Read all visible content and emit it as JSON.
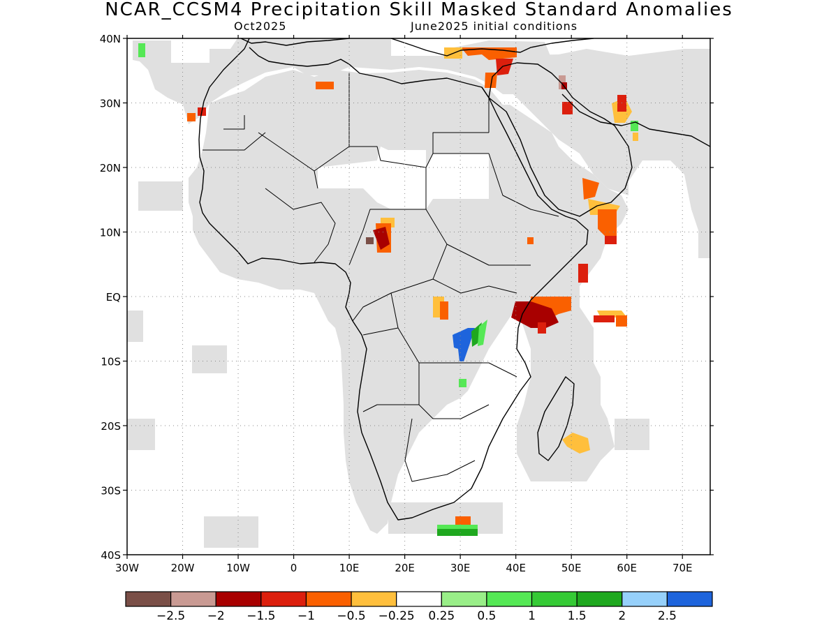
{
  "title": "NCAR_CCSM4 Precipitation Skill Masked Standard Anomalies",
  "subtitle_left": "Oct2025",
  "subtitle_right": "June2025 initial conditions",
  "map": {
    "lon_range": [
      -30,
      75
    ],
    "lat_range": [
      -40,
      40
    ],
    "lat_ticks": [
      {
        "value": 40,
        "label": "40N"
      },
      {
        "value": 30,
        "label": "30N"
      },
      {
        "value": 20,
        "label": "20N"
      },
      {
        "value": 10,
        "label": "10N"
      },
      {
        "value": 0,
        "label": "EQ"
      },
      {
        "value": -10,
        "label": "10S"
      },
      {
        "value": -20,
        "label": "20S"
      },
      {
        "value": -30,
        "label": "30S"
      },
      {
        "value": -40,
        "label": "40S"
      }
    ],
    "lon_ticks": [
      {
        "value": -30,
        "label": "30W"
      },
      {
        "value": -20,
        "label": "20W"
      },
      {
        "value": -10,
        "label": "10W"
      },
      {
        "value": 0,
        "label": "0"
      },
      {
        "value": 10,
        "label": "10E"
      },
      {
        "value": 20,
        "label": "20E"
      },
      {
        "value": 30,
        "label": "30E"
      },
      {
        "value": 40,
        "label": "40E"
      },
      {
        "value": 50,
        "label": "50E"
      },
      {
        "value": 60,
        "label": "60E"
      },
      {
        "value": 70,
        "label": "70E"
      }
    ],
    "mask_color": "#e0e0e0",
    "grid": true,
    "anomalies": [
      {
        "region": "Turkey / Levant",
        "lon": 37,
        "lat": 36,
        "value": -1.0
      },
      {
        "region": "Aegean",
        "lon": 27,
        "lat": 37,
        "value": -0.5
      },
      {
        "region": "Northern Algeria",
        "lon": 5,
        "lat": 33,
        "value": -1.0
      },
      {
        "region": "Morocco coast",
        "lon": -12,
        "lat": 29,
        "value": -1.0
      },
      {
        "region": "Canary Islands",
        "lon": -28,
        "lat": 39,
        "value": 1.5
      },
      {
        "region": "Iran",
        "lon": 48,
        "lat": 34,
        "value": -2.0
      },
      {
        "region": "Northern Gulf",
        "lon": 49,
        "lat": 30,
        "value": -1.0
      },
      {
        "region": "Iran coast",
        "lon": 56,
        "lat": 28,
        "value": -0.5
      },
      {
        "region": "Strait of Hormuz",
        "lon": 61,
        "lat": 27,
        "value": 1.0
      },
      {
        "region": "Western Arabia",
        "lon": 42,
        "lat": 18,
        "value": -1.0
      },
      {
        "region": "Gulf of Aden / Yemen coast",
        "lon": 56,
        "lat": 12,
        "value": -1.0
      },
      {
        "region": "Lake Chad region",
        "lon": 15,
        "lat": 10,
        "value": -1.5
      },
      {
        "region": "Somalia offshore",
        "lon": 52,
        "lat": 3,
        "value": -1.5
      },
      {
        "region": "Kenya coast",
        "lon": 43,
        "lat": -3,
        "value": -2.0
      },
      {
        "region": "Seychelles",
        "lon": 57,
        "lat": -4,
        "value": -1.0
      },
      {
        "region": "Eastern DRC",
        "lon": 27,
        "lat": -2,
        "value": -0.5
      },
      {
        "region": "Lake Tanganyika",
        "lon": 30,
        "lat": -7,
        "value": 2.5
      },
      {
        "region": "Western Tanzania",
        "lon": 33,
        "lat": -6,
        "value": 1.5
      },
      {
        "region": "Northern Zambia",
        "lon": 30,
        "lat": -13,
        "value": 1.0
      },
      {
        "region": "Madagascar east",
        "lon": 50,
        "lat": -22,
        "value": -0.5
      },
      {
        "region": "South African coast",
        "lon": 30,
        "lat": -35,
        "value": -1.0
      },
      {
        "region": "Agulhas offshore",
        "lon": 30,
        "lat": -37,
        "value": 1.5
      }
    ]
  },
  "colorbar": {
    "colors": [
      "#7a4f47",
      "#c99a93",
      "#a80000",
      "#dc1f0d",
      "#fa6000",
      "#ffbf3c",
      "#ffffff",
      "#99ee88",
      "#55e855",
      "#35ca35",
      "#1fa81f",
      "#96d0fa",
      "#1e64dc"
    ],
    "labels": [
      "−2.5",
      "−2",
      "−1.5",
      "−1",
      "−0.5",
      "−0.25",
      "0.25",
      "0.5",
      "1",
      "1.5",
      "2",
      "2.5"
    ]
  }
}
